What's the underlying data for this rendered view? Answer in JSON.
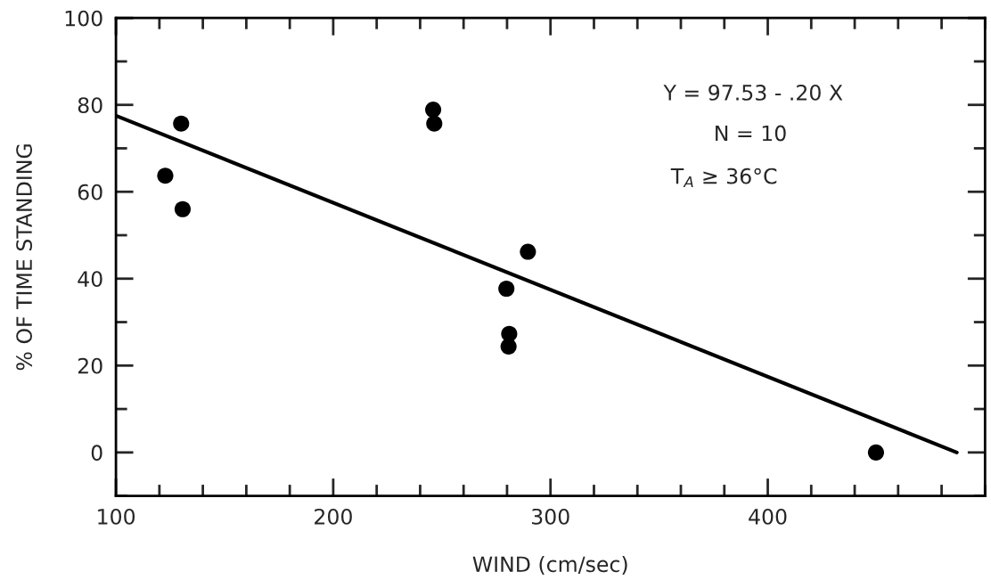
{
  "chart_data": {
    "type": "scatter",
    "xlabel": "WIND (cm/sec)",
    "ylabel": "% OF TIME STANDING",
    "xlim": [
      100,
      500
    ],
    "xticks": [
      100,
      200,
      300,
      400
    ],
    "ylim": [
      -10,
      100
    ],
    "yticks": [
      0,
      20,
      40,
      60,
      80,
      100
    ],
    "grid": false,
    "legend": false,
    "marker": "circle",
    "annotations": [
      "Y = 97.53 - .20 X",
      "N = 10",
      "T$_{A}$ ≥ 36°C"
    ],
    "series": [
      {
        "color": "#000000",
        "x": [
          122.7,
          130,
          130.7,
          246,
          246.5,
          279.7,
          281,
          280.7,
          289.6,
          449.8
        ],
        "values": [
          63.7,
          75.7,
          56,
          78.9,
          75.7,
          37.7,
          27.3,
          24.4,
          46.2,
          0
        ]
      },
      {
        "type": "line",
        "color": "#000000",
        "line_style": "solid",
        "marker": "none",
        "x": [
          100,
          487
        ],
        "values": [
          77.5,
          0
        ]
      }
    ]
  }
}
